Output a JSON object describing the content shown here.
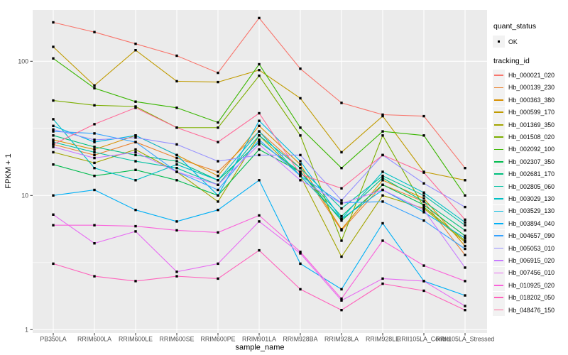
{
  "chart_data": {
    "type": "line",
    "title": "",
    "xlabel": "sample_name",
    "ylabel": "FPKM + 1",
    "y_scale": "log10",
    "y_ticks": [
      1,
      10,
      100
    ],
    "y_minor": [
      3.1623,
      31.623
    ],
    "ylim": [
      1,
      240
    ],
    "grid": true,
    "legend_position": "right",
    "point_marker": "small black square",
    "categories": [
      "PB350LA",
      "RRIM600LA",
      "RRIM600LE",
      "RRIM600SE",
      "RRIM600PE",
      "RRIM901LA",
      "RRIM928BA",
      "RRIM928LA",
      "RRIM928LE",
      "RRII105LA_Control",
      "RRII105LA_Stressed"
    ],
    "series": [
      {
        "name": "Hb_000021_020",
        "color": "#F8766D",
        "values": [
          195,
          165,
          135,
          110,
          82,
          210,
          88,
          49,
          40,
          39,
          16
        ]
      },
      {
        "name": "Hb_000139_230",
        "color": "#EA8331",
        "values": [
          24,
          20,
          25,
          19,
          15,
          30,
          16,
          5.5,
          12,
          9,
          3.6
        ]
      },
      {
        "name": "Hb_000363_380",
        "color": "#D89000",
        "values": [
          26,
          22,
          28,
          20,
          14,
          33,
          17,
          5.6,
          13,
          9.5,
          4.2
        ]
      },
      {
        "name": "Hb_000599_170",
        "color": "#C09B00",
        "values": [
          128,
          66,
          121,
          71,
          70,
          86,
          53,
          21,
          39,
          15,
          13
        ]
      },
      {
        "name": "Hb_001369_350",
        "color": "#A3A500",
        "values": [
          21,
          17.5,
          22,
          15,
          9,
          28,
          14,
          3.5,
          10,
          8,
          4.5
        ]
      },
      {
        "name": "Hb_001508_020",
        "color": "#7CAE00",
        "values": [
          51,
          47,
          46,
          32,
          32,
          78,
          28,
          4.6,
          28,
          8.2,
          4.6
        ]
      },
      {
        "name": "Hb_002092_100",
        "color": "#39B600",
        "values": [
          105,
          63,
          50,
          45,
          35,
          95,
          32,
          16,
          30,
          28,
          10
        ]
      },
      {
        "name": "Hb_002307_350",
        "color": "#00BB4E",
        "values": [
          17,
          14,
          15.5,
          13,
          10,
          22,
          15,
          6.5,
          12,
          8.5,
          5
        ]
      },
      {
        "name": "Hb_002681_170",
        "color": "#00BF7D",
        "values": [
          28,
          23,
          20,
          18,
          13,
          25,
          15,
          7,
          13.5,
          9,
          5.5
        ]
      },
      {
        "name": "Hb_002805_060",
        "color": "#00C1A3",
        "values": [
          25,
          21,
          18,
          16,
          12,
          28,
          16,
          8,
          14,
          10,
          6
        ]
      },
      {
        "name": "Hb_003029_130",
        "color": "#00BFC4",
        "values": [
          37,
          16,
          13,
          17,
          13,
          30,
          14,
          6.7,
          15,
          10.5,
          6.3
        ]
      },
      {
        "name": "Hb_003529_130",
        "color": "#00BAE0",
        "values": [
          33,
          25,
          28,
          20,
          10,
          36,
          18,
          6.7,
          11,
          7.5,
          4.8
        ]
      },
      {
        "name": "Hb_003894_040",
        "color": "#00B0F6",
        "values": [
          10,
          11,
          7.8,
          6.4,
          7.8,
          13,
          3.1,
          2.0,
          6.2,
          2.3,
          1.8
        ]
      },
      {
        "name": "Hb_004657_090",
        "color": "#35A2FF",
        "values": [
          30,
          29,
          25,
          15,
          11,
          26,
          14,
          8.8,
          9,
          6.5,
          4
        ]
      },
      {
        "name": "Hb_005053_010",
        "color": "#9590FF",
        "values": [
          31,
          26,
          27,
          24,
          18,
          20,
          20,
          9.2,
          20,
          12.3,
          8.2
        ]
      },
      {
        "name": "Hb_006915_020",
        "color": "#C77CFF",
        "values": [
          23,
          19,
          21,
          15,
          12,
          24,
          13,
          8.7,
          11,
          7.8,
          2.9
        ]
      },
      {
        "name": "Hb_007456_010",
        "color": "#E76BF3",
        "values": [
          7.2,
          4.4,
          5.4,
          2.7,
          3.1,
          6.4,
          3.7,
          1.65,
          2.4,
          2.3,
          1.5
        ]
      },
      {
        "name": "Hb_010925_020",
        "color": "#FA62DB",
        "values": [
          6.0,
          6.0,
          5.9,
          5.5,
          5.3,
          7.1,
          3.8,
          1.7,
          4.6,
          3.0,
          2.3
        ]
      },
      {
        "name": "Hb_018202_050",
        "color": "#FF62BC",
        "values": [
          3.1,
          2.5,
          2.3,
          2.5,
          2.4,
          3.9,
          2.0,
          1.4,
          2.2,
          1.95,
          1.4
        ]
      },
      {
        "name": "Hb_048476_150",
        "color": "#FF6A98",
        "values": [
          24,
          34,
          45,
          32,
          25,
          41,
          14.4,
          11.3,
          20,
          14.8,
          6.6
        ]
      }
    ],
    "legend": {
      "quant_status_title": "quant_status",
      "quant_status_items": [
        {
          "label": "OK"
        }
      ],
      "tracking_id_title": "tracking_id"
    }
  },
  "style": {
    "panel_bg": "#EBEBEB",
    "grid_color": "#FFFFFF",
    "axis_text_color": "#4D4D4D",
    "point_color": "#000000",
    "legend_key_bg": "#F2F2F2"
  }
}
